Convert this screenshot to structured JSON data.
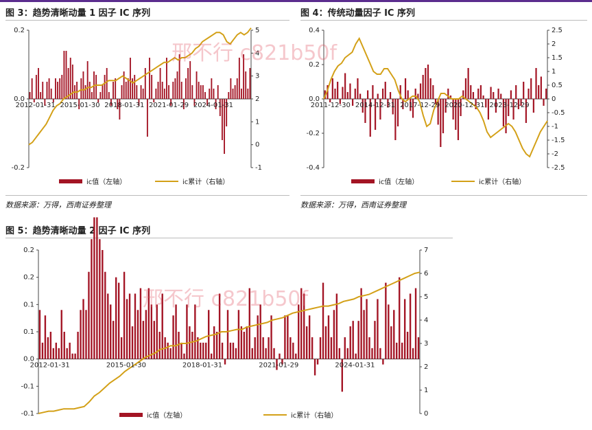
{
  "colors": {
    "bar": "#a31424",
    "line": "#d3a017",
    "accent": "#5b2d8e"
  },
  "watermark": "邢不行 c821b50f",
  "source_text": "数据来源：万得，西南证券整理",
  "legend": {
    "bar_label": "ic值（左轴）",
    "line_label": "ic累计（右轴）"
  },
  "charts": {
    "fig3": {
      "title": "图 3：趋势清晰动量 1 因子 IC 序列"
    },
    "fig4": {
      "title": "图 4：传统动量因子 IC 序列"
    },
    "fig5": {
      "title": "图 5：趋势清晰动量 2 因子 IC 序列"
    }
  },
  "chart_data": [
    {
      "id": "fig3",
      "type": "bar+line",
      "title": "图 3：趋势清晰动量 1 因子 IC 序列",
      "x_tick_labels": [
        "2012-01-31",
        "2015-01-30",
        "2018-01-31",
        "2021-01-29",
        "2024-01-31"
      ],
      "y_left": {
        "lim": [
          -0.2,
          0.2
        ],
        "ticks": [
          "0.2",
          "0.0",
          "-0.2"
        ]
      },
      "y_right": {
        "lim": [
          -1,
          5
        ],
        "ticks": [
          "5",
          "4",
          "3",
          "2",
          "1",
          "0",
          "-1"
        ]
      },
      "series": [
        {
          "name": "ic值（左轴）",
          "type": "bar",
          "values": [
            0.02,
            0.06,
            -0.01,
            0.07,
            0.09,
            0.02,
            0.05,
            -0.02,
            0.05,
            0.06,
            0.03,
            -0.01,
            0.06,
            0.05,
            0.06,
            0.07,
            0.14,
            0.14,
            0.09,
            0.12,
            0.1,
            0.04,
            0.05,
            -0.03,
            0.06,
            0.08,
            0.04,
            0.11,
            0.05,
            0.02,
            0.08,
            0.07,
            -0.01,
            0.02,
            0.04,
            0.07,
            0.09,
            0.02,
            -0.02,
            0.05,
            0.06,
            -0.03,
            -0.06,
            0.04,
            0.08,
            0.05,
            0.06,
            0.12,
            0.06,
            0.07,
            0.04,
            -0.02,
            0.04,
            0.03,
            0.09,
            -0.11,
            0.12,
            0.07,
            -0.01,
            0.03,
            0.05,
            0.09,
            0.05,
            0.03,
            0.12,
            0.04,
            -0.02,
            0.05,
            0.06,
            0.08,
            0.13,
            0.05,
            -0.03,
            0.06,
            0.09,
            0.11,
            0.04,
            -0.02,
            0.08,
            0.05,
            0.04,
            0.04,
            0.02,
            -0.02,
            0.03,
            0.06,
            0.03,
            -0.03,
            0.04,
            -0.05,
            -0.12,
            -0.16,
            -0.08,
            0.02,
            0.06,
            0.03,
            0.04,
            0.06,
            0.12,
            0.03,
            0.13,
            0.08,
            0.03,
            0.09
          ]
        },
        {
          "name": "ic累计（右轴）",
          "type": "line",
          "values": [
            -0.0,
            0.1,
            0.3,
            0.5,
            0.7,
            0.9,
            1.2,
            1.5,
            1.7,
            1.8,
            2.0,
            2.1,
            2.2,
            2.3,
            2.3,
            2.4,
            2.4,
            2.5,
            2.5,
            2.6,
            2.6,
            2.6,
            2.7,
            2.8,
            2.8,
            2.8,
            2.9,
            3.0,
            2.9,
            2.8,
            2.7,
            2.8,
            2.9,
            3.0,
            3.1,
            3.2,
            3.3,
            3.4,
            3.5,
            3.6,
            3.6,
            3.7,
            3.8,
            3.7,
            3.8,
            3.8,
            3.9,
            4.0,
            4.2,
            4.3,
            4.5,
            4.6,
            4.7,
            4.8,
            4.9,
            4.9,
            4.8,
            4.5,
            4.4,
            4.6,
            4.8,
            4.9,
            4.8,
            4.9,
            5.1
          ]
        }
      ]
    },
    {
      "id": "fig4",
      "type": "bar+line",
      "title": "图 4：传统动量因子 IC 序列",
      "x_tick_labels": [
        "2011-12-30",
        "2014-12-31",
        "2017-12-29",
        "2020-12-31",
        "2023-12-29"
      ],
      "y_left": {
        "lim": [
          -0.4,
          0.4
        ],
        "ticks": [
          "0.4",
          "0.2",
          "0.0",
          "-0.2",
          "-0.4"
        ]
      },
      "y_right": {
        "lim": [
          -2.5,
          2.5
        ],
        "ticks": [
          "2.5",
          "2",
          "1.5",
          "1",
          "0.5",
          "0",
          "-0.5",
          "-1",
          "-1.5",
          "-2",
          "-2.5"
        ]
      },
      "series": [
        {
          "name": "ic值（左轴）",
          "type": "bar",
          "values": [
            0.05,
            0.08,
            -0.02,
            0.12,
            0.06,
            0.1,
            -0.03,
            0.07,
            0.15,
            0.04,
            0.09,
            -0.04,
            0.06,
            0.12,
            0.03,
            -0.08,
            -0.14,
            0.05,
            -0.22,
            0.08,
            -0.18,
            0.03,
            -0.12,
            0.06,
            0.1,
            -0.05,
            0.04,
            -0.09,
            -0.24,
            -0.16,
            0.08,
            -0.06,
            0.12,
            0.05,
            -0.07,
            -0.11,
            0.06,
            0.03,
            0.09,
            0.14,
            0.18,
            0.2,
            0.12,
            0.08,
            -0.03,
            -0.15,
            -0.28,
            -0.2,
            -0.08,
            0.06,
            0.02,
            -0.12,
            -0.18,
            -0.24,
            -0.1,
            0.05,
            0.12,
            0.18,
            0.08,
            0.04,
            -0.06,
            0.06,
            0.08,
            0.02,
            -0.05,
            -0.12,
            0.07,
            0.04,
            -0.08,
            0.06,
            0.03,
            -0.16,
            -0.2,
            -0.1,
            0.05,
            -0.12,
            0.08,
            -0.06,
            -0.04,
            0.1,
            -0.14,
            0.06,
            0.12,
            -0.08,
            0.18,
            0.08,
            0.13,
            -0.04,
            0.06
          ]
        },
        {
          "name": "ic累计（右轴）",
          "type": "line",
          "values": [
            0.0,
            0.3,
            0.7,
            1.0,
            1.2,
            1.3,
            1.5,
            1.6,
            1.7,
            2.0,
            2.2,
            1.9,
            1.6,
            1.3,
            1.0,
            0.9,
            0.9,
            1.1,
            1.1,
            0.9,
            0.7,
            0.3,
            0.0,
            -0.1,
            0.0,
            0.1,
            0.1,
            -0.1,
            -0.6,
            -1.0,
            -0.9,
            -0.4,
            -0.1,
            0.2,
            0.2,
            0.1,
            0.0,
            0.0,
            0.0,
            0.1,
            0.0,
            -0.1,
            -0.2,
            -0.3,
            -0.5,
            -0.8,
            -1.2,
            -1.4,
            -1.3,
            -1.2,
            -1.1,
            -1.0,
            -0.9,
            -1.0,
            -1.2,
            -1.5,
            -1.8,
            -2.0,
            -2.1,
            -1.8,
            -1.5,
            -1.2,
            -1.0,
            -0.8
          ]
        }
      ]
    },
    {
      "id": "fig5",
      "type": "bar+line",
      "title": "图 5：趋势清晰动量 2 因子 IC 序列",
      "x_tick_labels": [
        "2012-01-31",
        "2015-01-30",
        "2018-01-31",
        "2021-01-29",
        "2024-01-31"
      ],
      "y_left": {
        "lim": [
          -0.1,
          0.2
        ],
        "ticks": [
          "0.2",
          "0.2",
          "0.1",
          "0.1",
          "0.0",
          "-0.1",
          "-0.1"
        ]
      },
      "y_right": {
        "lim": [
          0,
          7
        ],
        "ticks": [
          "7",
          "6",
          "5",
          "4",
          "3",
          "2",
          "1",
          "0"
        ]
      },
      "series": [
        {
          "name": "ic值（左轴）",
          "type": "bar",
          "values": [
            0.09,
            0.03,
            0.08,
            0.04,
            0.05,
            0.02,
            0.03,
            0.02,
            0.09,
            0.05,
            0.02,
            0.03,
            0.01,
            0.01,
            0.05,
            0.09,
            0.11,
            0.09,
            0.16,
            0.22,
            0.26,
            0.26,
            0.22,
            0.2,
            0.16,
            0.12,
            0.1,
            0.07,
            0.15,
            0.14,
            0.04,
            0.16,
            0.11,
            0.12,
            0.06,
            0.12,
            0.09,
            0.13,
            0.07,
            0.09,
            0.13,
            0.1,
            0.07,
            0.1,
            0.05,
            0.12,
            0.04,
            0.03,
            0.02,
            0.08,
            0.1,
            0.05,
            0.03,
            0.01,
            0.1,
            0.06,
            0.05,
            0.1,
            0.04,
            0.03,
            0.03,
            0.03,
            0.09,
            0.01,
            0.06,
            0.05,
            0.12,
            0.03,
            -0.01,
            0.09,
            0.03,
            0.03,
            0.02,
            0.09,
            0.06,
            0.05,
            0.06,
            0.13,
            0.02,
            0.04,
            0.08,
            0.1,
            0.04,
            0.02,
            0.04,
            0.08,
            0.02,
            -0.02,
            0.01,
            -0.01,
            0.08,
            0.08,
            0.04,
            0.03,
            0.01,
            0.1,
            0.13,
            0.12,
            0.06,
            0.08,
            0.04,
            -0.03,
            -0.01,
            0.04,
            0.14,
            0.06,
            0.08,
            0.04,
            0.09,
            0.12,
            0.02,
            -0.06,
            0.04,
            0.02,
            0.06,
            0.07,
            0.01,
            0.07,
            0.13,
            0.09,
            0.11,
            0.04,
            0.02,
            0.07,
            0.11,
            0.02,
            -0.01,
            0.14,
            0.1,
            0.06,
            0.09,
            0.03,
            0.15,
            0.03,
            0.11,
            0.05,
            0.12,
            0.02,
            0.13,
            0.04
          ]
        },
        {
          "name": "ic累计（右轴）",
          "type": "line",
          "values": [
            0.0,
            0.05,
            0.1,
            0.1,
            0.15,
            0.2,
            0.2,
            0.2,
            0.25,
            0.3,
            0.5,
            0.75,
            0.9,
            1.1,
            1.3,
            1.45,
            1.6,
            1.8,
            1.95,
            2.1,
            2.25,
            2.4,
            2.5,
            2.6,
            2.75,
            2.8,
            2.9,
            2.9,
            3.0,
            3.0,
            3.05,
            3.1,
            3.2,
            3.3,
            3.35,
            3.4,
            3.5,
            3.5,
            3.55,
            3.6,
            3.6,
            3.7,
            3.75,
            3.8,
            3.85,
            3.9,
            4.0,
            4.05,
            4.1,
            4.2,
            4.3,
            4.35,
            4.4,
            4.45,
            4.5,
            4.55,
            4.6,
            4.6,
            4.65,
            4.7,
            4.8,
            4.85,
            4.9,
            5.0,
            5.05,
            5.1,
            5.2,
            5.3,
            5.4,
            5.5,
            5.6,
            5.7,
            5.8,
            5.9,
            6.0,
            6.05
          ]
        }
      ]
    }
  ]
}
